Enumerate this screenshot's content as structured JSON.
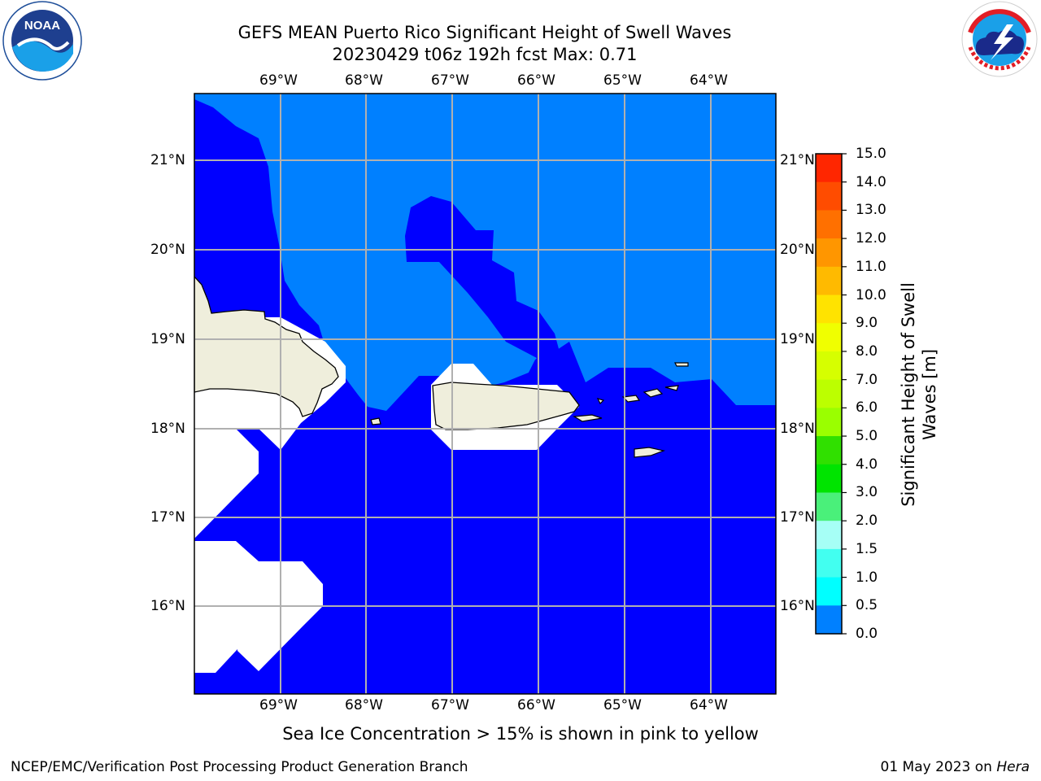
{
  "title_line1": "GEFS MEAN Puerto Rico Significant Height of Swell Waves",
  "title_line2": "20230429 t06z 192h fcst   Max: 0.71",
  "caption": "Sea Ice Concentration > 15% is shown in pink to yellow",
  "footer_left": "NCEP/EMC/Verification Post Processing Product Generation Branch",
  "footer_date": "01 May 2023 on",
  "footer_machine": "Hera",
  "logos": {
    "left": "noaa-logo",
    "right": "nws-logo"
  },
  "map": {
    "lon_ticks": [
      "69°W",
      "68°W",
      "67°W",
      "66°W",
      "65°W",
      "64°W"
    ],
    "lat_ticks": [
      "21°N",
      "20°N",
      "19°N",
      "18°N",
      "17°N",
      "16°N"
    ],
    "colors": {
      "band_0_0.5": "#0000ff",
      "band_0.5_1.0": "#0080ff",
      "land": "#efeedc",
      "missing": "#ffffff",
      "grid": "#b0b0b0"
    }
  },
  "colorbar": {
    "label": "Significant Height of Swell Waves [m]",
    "label_line1": "Significant Height of Swell",
    "label_line2": "Waves [m]",
    "tick_labels": [
      "15.0",
      "14.0",
      "13.0",
      "12.0",
      "11.0",
      "10.0",
      "9.0",
      "8.0",
      "7.0",
      "6.0",
      "5.0",
      "4.0",
      "3.0",
      "2.0",
      "1.5",
      "1.0",
      "0.5",
      "0.0"
    ],
    "colors_top_to_bottom": [
      "#ff0000",
      "#ff2600",
      "#ff4c00",
      "#ff7000",
      "#ff9600",
      "#ffba00",
      "#ffe300",
      "#f0ff00",
      "#d6ff00",
      "#bcff00",
      "#9aff00",
      "#30e000",
      "#00e400",
      "#4af07a",
      "#a6fff6",
      "#42fff0",
      "#00ffff",
      "#0080ff",
      "#0000ff"
    ]
  }
}
